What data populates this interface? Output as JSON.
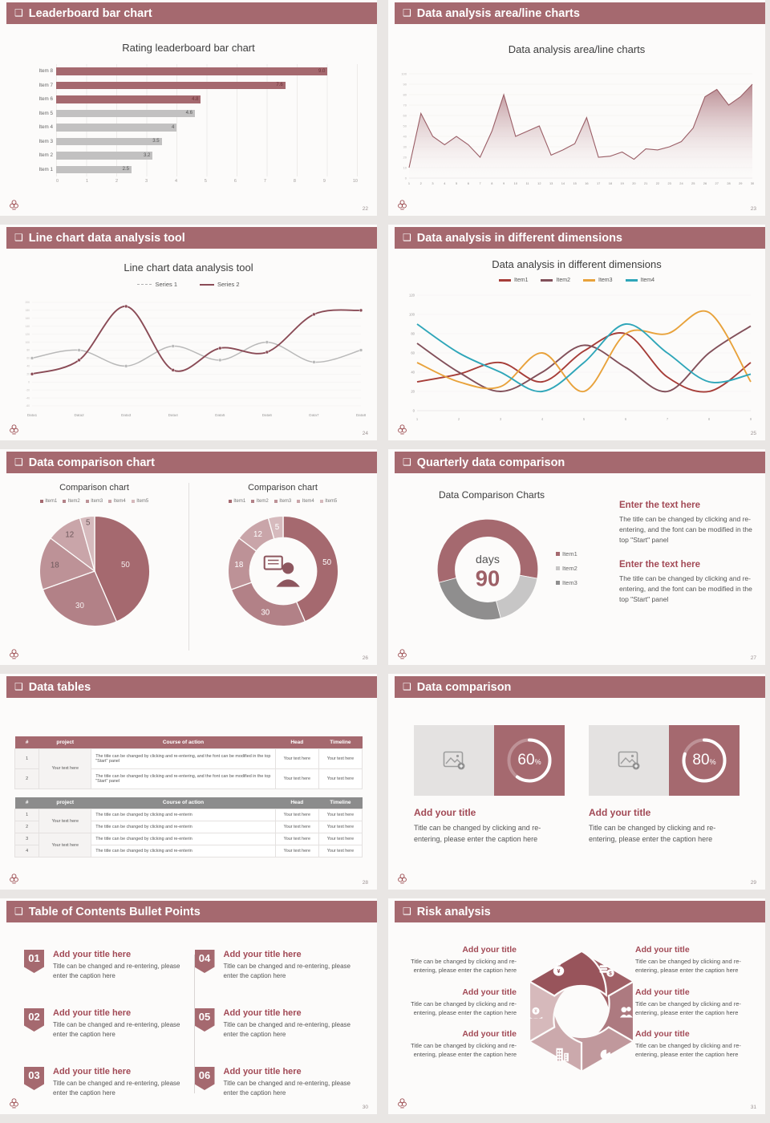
{
  "page": {
    "bg": "#e9e6e4",
    "slide_bg": "#fcfbfa",
    "accent": "#a5696f",
    "header_icon": "❑"
  },
  "slides": {
    "s1": {
      "header": "Leaderboard bar chart",
      "page_num": "22",
      "chart": {
        "type": "bar",
        "title": "Rating leaderboard bar chart",
        "categories": [
          "Item 1",
          "Item 2",
          "Item 3",
          "Item 4",
          "Item 5",
          "Item 6",
          "Item 7",
          "Item 8"
        ],
        "values": [
          2.5,
          3.2,
          3.5,
          4,
          4.6,
          4.8,
          7.6,
          9.0
        ],
        "value_labels": [
          "2.5",
          "3.2",
          "3.5",
          "4",
          "4.6",
          "4.8",
          "7.6",
          "9.0"
        ],
        "highlight": [
          false,
          false,
          false,
          false,
          false,
          true,
          true,
          true
        ],
        "bar_color": "#c2c1c1",
        "highlight_color": "#a5696f",
        "xticks": [
          "0",
          "1",
          "2",
          "3",
          "4",
          "5",
          "6",
          "7",
          "8",
          "9",
          "10"
        ],
        "xmax": 10
      }
    },
    "s2": {
      "header": "Data analysis area/line charts",
      "page_num": "23",
      "chart": {
        "type": "area",
        "title": "Data analysis area/line charts",
        "x": [
          "1",
          "2",
          "3",
          "4",
          "5",
          "6",
          "7",
          "8",
          "9",
          "10",
          "11",
          "12",
          "13",
          "14",
          "15",
          "16",
          "17",
          "18",
          "19",
          "20",
          "21",
          "22",
          "23",
          "24",
          "25",
          "26",
          "27",
          "28",
          "29",
          "30"
        ],
        "values": [
          10,
          62,
          40,
          32,
          40,
          32,
          20,
          45,
          80,
          40,
          45,
          50,
          22,
          27,
          33,
          58,
          20,
          21,
          25,
          18,
          28,
          27,
          30,
          35,
          48,
          78,
          85,
          70,
          78,
          90
        ],
        "yticks": [
          100,
          90,
          80,
          70,
          60,
          50,
          40,
          30,
          20,
          10,
          0
        ],
        "ymax": 100,
        "line_color": "#9a5e66",
        "fill_color": "#b4838a"
      }
    },
    "s3": {
      "header": "Line chart data analysis tool",
      "page_num": "24",
      "chart": {
        "type": "line",
        "title": "Line chart data analysis tool",
        "x_labels": [
          "Data1",
          "Data2",
          "Data3",
          "Data4",
          "Data5",
          "Data6",
          "Data7",
          "Data8"
        ],
        "yticks": [
          200,
          180,
          160,
          140,
          120,
          100,
          80,
          60,
          40,
          20,
          0,
          -20,
          -40,
          -60
        ],
        "ymin": -60,
        "ymax": 210,
        "series": [
          {
            "name": "Series 1",
            "color": "#b9b9b9",
            "values": [
              60,
              80,
              40,
              90,
              55,
              100,
              50,
              80
            ]
          },
          {
            "name": "Series 2",
            "color": "#8a4b56",
            "values": [
              20,
              55,
              190,
              30,
              85,
              75,
              170,
              180
            ]
          }
        ]
      }
    },
    "s4": {
      "header": "Data analysis in different dimensions",
      "page_num": "25",
      "chart": {
        "type": "line",
        "title": "Data analysis in different dimensions",
        "x": [
          "1",
          "2",
          "3",
          "4",
          "5",
          "6",
          "7",
          "8",
          "9"
        ],
        "yticks": [
          120,
          100,
          80,
          60,
          40,
          20,
          0
        ],
        "ymin": 0,
        "ymax": 120,
        "series": [
          {
            "name": "Item1",
            "color": "#a63d38",
            "values": [
              30,
              38,
              50,
              30,
              62,
              80,
              35,
              20,
              50
            ]
          },
          {
            "name": "Item2",
            "color": "#82505a",
            "values": [
              70,
              40,
              20,
              40,
              68,
              45,
              20,
              60,
              88
            ]
          },
          {
            "name": "Item3",
            "color": "#e8a23b",
            "values": [
              50,
              30,
              25,
              60,
              20,
              80,
              80,
              102,
              30
            ]
          },
          {
            "name": "Item4",
            "color": "#2fa6b9",
            "values": [
              90,
              60,
              40,
              20,
              50,
              90,
              60,
              30,
              38
            ]
          }
        ]
      }
    },
    "s5": {
      "header": "Data comparison chart",
      "page_num": "26",
      "left_title": "Comparison chart",
      "right_title": "Comparison chart",
      "legend": [
        "Item1",
        "Item2",
        "Item3",
        "Item4",
        "Item5"
      ],
      "values": [
        50,
        30,
        18,
        12,
        5
      ],
      "value_labels": [
        "50",
        "30",
        "18",
        "12",
        "5"
      ],
      "colors": [
        "#a5696f",
        "#b28187",
        "#bd9297",
        "#c9a5a9",
        "#d6babd"
      ]
    },
    "s6": {
      "header": "Quarterly data comparison",
      "page_num": "27",
      "chart": {
        "type": "pie",
        "title": "Data Comparison Charts",
        "center_label": "days",
        "center_value": "90",
        "start_angle": 255,
        "segments": [
          {
            "label": "Item1",
            "color": "#a5696f",
            "pct": 57
          },
          {
            "label": "Item2",
            "color": "#c7c6c6",
            "pct": 18
          },
          {
            "label": "Item3",
            "color": "#8f8e8e",
            "pct": 25
          }
        ]
      },
      "blocks": [
        {
          "title": "Enter the text here",
          "body": "The title can be changed by clicking and re-entering, and the font can be modified in the top \"Start\" panel"
        },
        {
          "title": "Enter the text here",
          "body": "The title can be changed by clicking and re-entering, and the font can be modified in the top \"Start\" panel"
        }
      ]
    },
    "s7": {
      "header": "Data tables",
      "page_num": "28",
      "headers": [
        "#",
        "project",
        "Course of action",
        "Head",
        "Timeline"
      ],
      "table1": {
        "nums": [
          "1",
          "2"
        ],
        "project": "Your text here",
        "course": "The title can be changed by clicking and re-entering, and the font can be modified in the top \"Start\" panel",
        "head": "Your text here",
        "timeline": "Your text here"
      },
      "table2": {
        "course": "The title can be changed by clicking and re-enterin",
        "groups": [
          {
            "project": "Your text here",
            "nums": [
              "1",
              "2"
            ]
          },
          {
            "project": "Your text here",
            "nums": [
              "3",
              "4"
            ]
          }
        ],
        "head": "Your text here",
        "timeline": "Your text here"
      }
    },
    "s8": {
      "header": "Data comparison",
      "page_num": "29",
      "pct_symbol": "%",
      "cards": [
        {
          "pct": 60,
          "pct_label": "60",
          "title": "Add your title",
          "caption": "Title can be changed by clicking and re-entering, please enter the caption here"
        },
        {
          "pct": 80,
          "pct_label": "80",
          "title": "Add your title",
          "caption": "Title can be changed by clicking and re-entering, please enter the caption here"
        }
      ]
    },
    "s9": {
      "header": "Table of Contents Bullet Points",
      "page_num": "30",
      "items": [
        {
          "num": "01",
          "title": "Add your title here",
          "caption": "Title can be changed and re-entering, please enter the caption here"
        },
        {
          "num": "02",
          "title": "Add your title here",
          "caption": "Title can be changed and re-entering, please enter the caption here"
        },
        {
          "num": "03",
          "title": "Add your title here",
          "caption": "Title can be changed and re-entering, please enter the caption here"
        },
        {
          "num": "04",
          "title": "Add your title here",
          "caption": "Title can be changed and re-entering, please enter the caption here"
        },
        {
          "num": "05",
          "title": "Add your title here",
          "caption": "Title can be changed and re-entering, please enter the caption here"
        },
        {
          "num": "06",
          "title": "Add your title here",
          "caption": "Title can be changed and re-entering, please enter the caption here"
        }
      ]
    },
    "s10": {
      "header": "Risk analysis",
      "page_num": "31",
      "left_items": [
        {
          "title": "Add your title",
          "caption": "Title can be changed by clicking and re-entering, please enter the caption here"
        },
        {
          "title": "Add your title",
          "caption": "Title can be changed by clicking and re-entering, please enter the caption here"
        },
        {
          "title": "Add your title",
          "caption": "Title can be changed by clicking and re-entering, please enter the caption here"
        }
      ],
      "right_items": [
        {
          "title": "Add your title",
          "caption": "Title can be changed by clicking and re-entering, please enter the caption here"
        },
        {
          "title": "Add your title",
          "caption": "Title can be changed by clicking and re-entering, please enter the caption here"
        },
        {
          "title": "Add your title",
          "caption": "Title can be changed by clicking and re-entering, please enter the caption here"
        }
      ],
      "wheel_colors": [
        "#a06066",
        "#ad7a80",
        "#c0989c",
        "#cba9ac",
        "#d6b9bb",
        "#98545b"
      ],
      "wheel_icons": [
        "coins-icon",
        "people-icon",
        "pie-chart-icon",
        "building-icon",
        "hand-coin-icon",
        "money-bag-icon"
      ]
    }
  }
}
